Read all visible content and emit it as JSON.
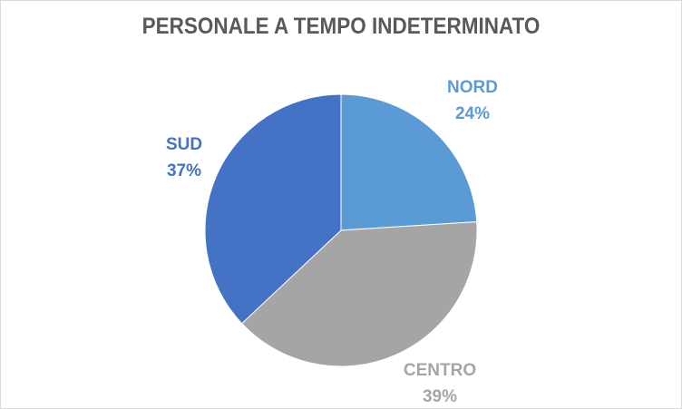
{
  "chart_data": {
    "type": "pie",
    "title": "PERSONALE A TEMPO INDETERMINATO",
    "slices": [
      {
        "label": "NORD",
        "value": 24,
        "value_label": "24%",
        "color": "#5b9bd5"
      },
      {
        "label": "CENTRO",
        "value": 39,
        "value_label": "39%",
        "color": "#a5a5a5"
      },
      {
        "label": "SUD",
        "value": 37,
        "value_label": "37%",
        "color": "#4472c4"
      }
    ],
    "legend": "none",
    "label_colors": {
      "NORD": "#5b9bd5",
      "CENTRO": "#a5a5a5",
      "SUD": "#4472c4"
    }
  }
}
